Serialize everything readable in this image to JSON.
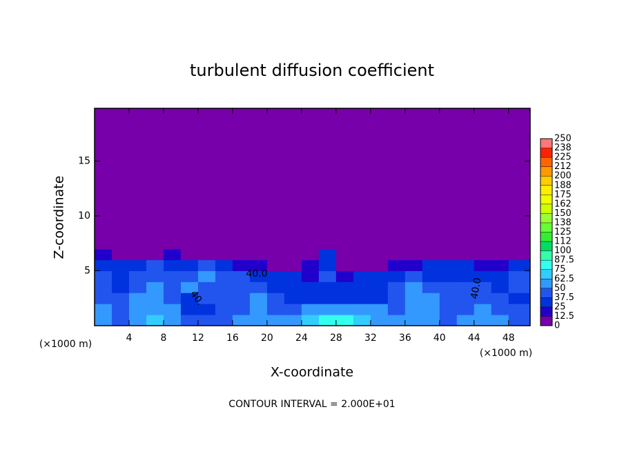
{
  "chart_data": {
    "type": "heatmap",
    "title": "turbulent diffusion coefficient",
    "xlabel": "X-coordinate",
    "ylabel": "Z-coordinate",
    "x_unit": "(×1000 m)",
    "footnote": "CONTOUR INTERVAL = 2.000E+01",
    "contour_labels": [
      "40.0",
      "40.",
      "40.0"
    ],
    "xlim": [
      0,
      50.5
    ],
    "ylim": [
      0,
      19.8
    ],
    "xticks": [
      4,
      8,
      12,
      16,
      20,
      24,
      28,
      32,
      36,
      40,
      44,
      48
    ],
    "yticks": [
      5,
      10,
      15
    ],
    "x_edges": [
      0,
      2,
      4,
      6,
      8,
      10,
      12,
      14,
      16,
      18,
      20,
      22,
      24,
      26,
      28,
      30,
      32,
      34,
      36,
      38,
      40,
      42,
      44,
      46,
      48,
      50.5
    ],
    "y_edges": [
      0,
      1,
      2,
      3,
      4,
      5,
      6,
      7,
      19.8
    ],
    "z": [
      [
        55,
        45,
        60,
        70,
        55,
        40,
        45,
        45,
        50,
        60,
        50,
        50,
        65,
        75,
        75,
        65,
        55,
        50,
        55,
        50,
        45,
        50,
        55,
        60,
        45
      ],
      [
        50,
        45,
        55,
        60,
        50,
        35,
        30,
        40,
        45,
        55,
        45,
        45,
        55,
        55,
        55,
        55,
        50,
        45,
        55,
        50,
        40,
        45,
        50,
        45,
        40
      ],
      [
        45,
        40,
        50,
        55,
        45,
        35,
        45,
        45,
        45,
        50,
        45,
        35,
        30,
        30,
        30,
        30,
        35,
        40,
        50,
        55,
        45,
        40,
        45,
        40,
        35
      ],
      [
        45,
        30,
        45,
        50,
        45,
        50,
        45,
        40,
        45,
        45,
        35,
        30,
        25,
        30,
        25,
        25,
        30,
        40,
        50,
        45,
        40,
        40,
        40,
        35,
        40
      ],
      [
        40,
        30,
        40,
        45,
        40,
        45,
        50,
        40,
        40,
        35,
        30,
        35,
        20,
        40,
        20,
        30,
        30,
        35,
        40,
        35,
        35,
        35,
        35,
        30,
        40
      ],
      [
        30,
        25,
        30,
        40,
        35,
        35,
        40,
        30,
        20,
        20,
        10,
        10,
        20,
        35,
        10,
        10,
        10,
        15,
        20,
        25,
        25,
        25,
        20,
        20,
        30
      ],
      [
        20,
        10,
        10,
        10,
        20,
        10,
        5,
        5,
        5,
        5,
        5,
        5,
        10,
        30,
        5,
        5,
        5,
        5,
        5,
        5,
        10,
        10,
        5,
        5,
        10
      ],
      [
        0,
        0,
        0,
        0,
        0,
        0,
        0,
        0,
        0,
        0,
        0,
        0,
        0,
        0,
        0,
        0,
        0,
        0,
        0,
        0,
        0,
        0,
        0,
        0,
        0
      ]
    ],
    "levels": [
      0,
      12.5,
      25,
      37.5,
      50,
      62.5,
      75,
      87.5,
      100,
      112,
      125,
      138,
      150,
      162,
      175,
      188,
      200,
      212,
      225,
      238,
      250
    ],
    "colors": [
      "#7700aa",
      "#2200cc",
      "#0033dd",
      "#2255ee",
      "#3399ff",
      "#33ccff",
      "#33ffee",
      "#33ffaa",
      "#00dd66",
      "#33ee33",
      "#66ff33",
      "#99ff33",
      "#ccff00",
      "#eeff00",
      "#ffee00",
      "#ffcc00",
      "#ff9900",
      "#ff6600",
      "#ff2200",
      "#ff7777"
    ]
  }
}
